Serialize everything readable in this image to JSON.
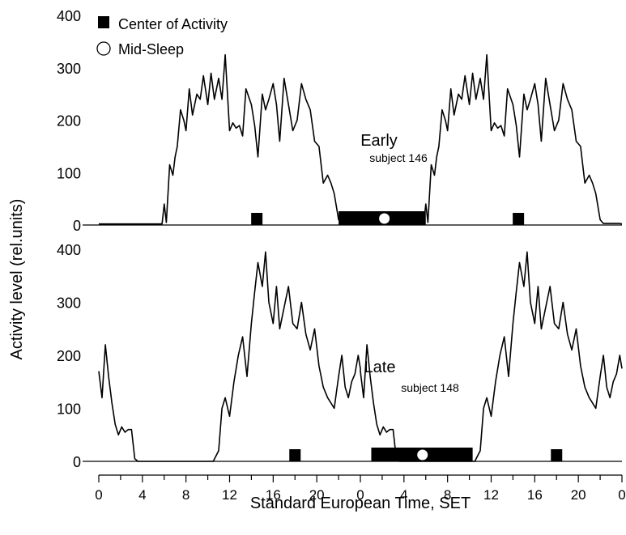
{
  "chart_data": {
    "type": "line",
    "ylabel": "Activity level (rel.units)",
    "xlabel": "Standard European Time, SET",
    "legend": {
      "placement": "top-left",
      "items": [
        {
          "name": "Center of Activity",
          "marker": "square-filled"
        },
        {
          "name": "Mid-Sleep",
          "marker": "circle-open"
        }
      ]
    },
    "x_ticks": [
      "0",
      "4",
      "8",
      "12",
      "16",
      "20",
      "0",
      "4",
      "8",
      "12",
      "16",
      "20",
      "0"
    ],
    "x_range_hours": [
      0,
      48
    ],
    "ylim": [
      0,
      400
    ],
    "y_ticks": [
      0,
      100,
      200,
      300,
      400
    ],
    "colors": {
      "line": "#000000",
      "marker": "#000000",
      "circle": "#ffffff"
    },
    "panels": [
      {
        "id": "top",
        "label": "Early",
        "sublabel": "subject 146",
        "center_of_activity_h": [
          14.5,
          38.5
        ],
        "sleep_bar_h": [
          22.0,
          30.0
        ],
        "mid_sleep_h": 26.2,
        "x": [
          0,
          0.5,
          1,
          1.5,
          2,
          2.5,
          3,
          3.5,
          4,
          4.5,
          5,
          5.5,
          5.8,
          6,
          6.2,
          6.5,
          6.8,
          7,
          7.2,
          7.5,
          7.8,
          8,
          8.3,
          8.6,
          9,
          9.3,
          9.6,
          10,
          10.3,
          10.6,
          11,
          11.3,
          11.6,
          12,
          12.3,
          12.6,
          12.9,
          13.2,
          13.5,
          14,
          14.3,
          14.6,
          15,
          15.3,
          15.6,
          16,
          16.3,
          16.6,
          17,
          17.4,
          17.8,
          18.2,
          18.6,
          19,
          19.4,
          19.8,
          20.2,
          20.6,
          21,
          21.3,
          21.6,
          22,
          22.3,
          22.6,
          22.9,
          23.2,
          23.5,
          23.8,
          24
        ],
        "y": [
          2,
          2,
          2,
          2,
          2,
          2,
          2,
          2,
          2,
          2,
          2,
          2,
          2,
          40,
          5,
          115,
          95,
          130,
          150,
          220,
          200,
          180,
          260,
          210,
          250,
          240,
          285,
          230,
          290,
          240,
          280,
          240,
          325,
          180,
          195,
          185,
          190,
          170,
          260,
          230,
          190,
          130,
          250,
          220,
          240,
          270,
          230,
          160,
          280,
          230,
          180,
          200,
          270,
          240,
          220,
          160,
          150,
          80,
          95,
          80,
          60,
          10,
          3,
          3,
          3,
          3,
          3,
          3,
          2
        ]
      },
      {
        "id": "bottom",
        "label": "Late",
        "sublabel": "subject 148",
        "center_of_activity_h": [
          18.0,
          42.0
        ],
        "sleep_bar_h": [
          25.0,
          34.3
        ],
        "mid_sleep_h": 29.7,
        "x": [
          0,
          0.3,
          0.6,
          0.9,
          1.2,
          1.5,
          1.8,
          2.1,
          2.4,
          2.7,
          3,
          3.3,
          3.6,
          4,
          5,
          6,
          7,
          8,
          9,
          10,
          10.5,
          11,
          11.3,
          11.6,
          12,
          12.4,
          12.8,
          13.2,
          13.6,
          14,
          14.3,
          14.6,
          15,
          15.3,
          15.6,
          16,
          16.3,
          16.6,
          17,
          17.4,
          17.8,
          18.2,
          18.6,
          19,
          19.4,
          19.8,
          20.2,
          20.6,
          21,
          21.3,
          21.6,
          22,
          22.3,
          22.6,
          22.9,
          23.2,
          23.5,
          23.8,
          24
        ],
        "y": [
          170,
          120,
          220,
          160,
          110,
          70,
          50,
          65,
          55,
          60,
          60,
          5,
          0,
          0,
          0,
          0,
          0,
          0,
          0,
          0,
          0,
          20,
          100,
          120,
          85,
          150,
          200,
          235,
          160,
          260,
          320,
          375,
          330,
          395,
          300,
          260,
          330,
          250,
          290,
          330,
          260,
          250,
          300,
          240,
          210,
          250,
          180,
          140,
          120,
          110,
          100,
          160,
          200,
          140,
          120,
          150,
          165,
          200,
          175
        ]
      }
    ]
  }
}
